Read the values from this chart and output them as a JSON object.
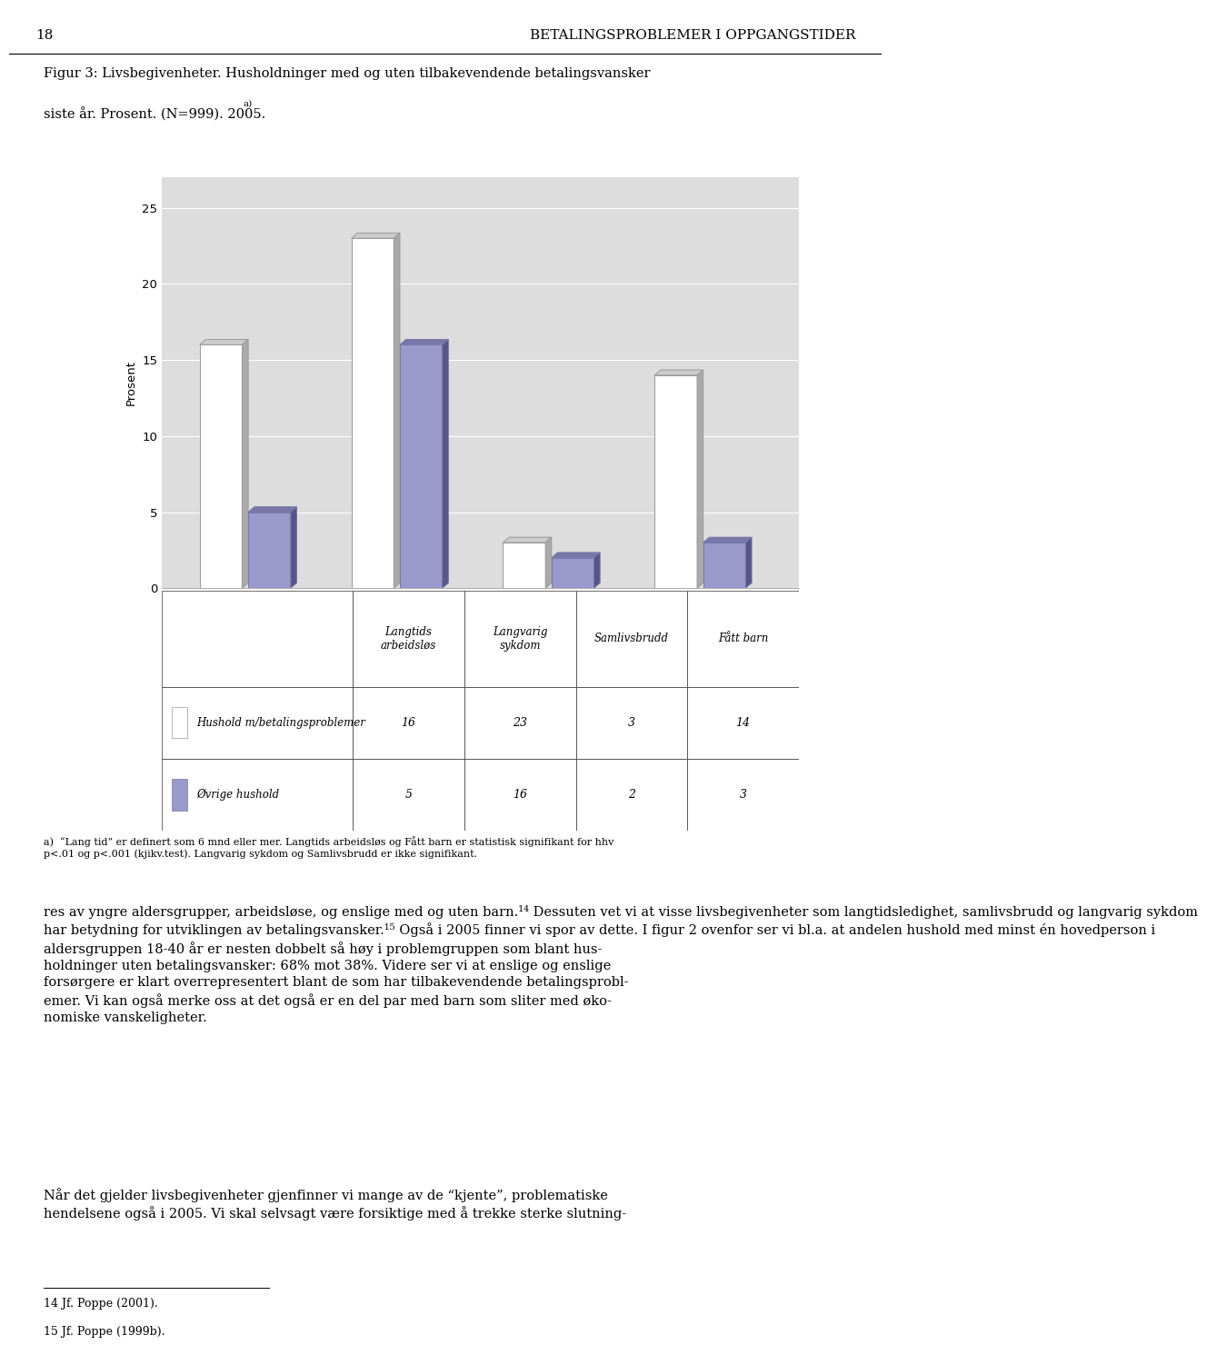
{
  "title_page_num": "18",
  "title_header": "BETALINGSPROBLEMER I OPPGANGSTIDER",
  "caption_line1": "Figur 3: Livsbegivenheter. Husholdninger med og uten tilbakevendende betalingsvansker",
  "caption_line2": "siste år. Prosent. (N=999). 2005.",
  "caption_super": "a)",
  "categories": [
    "Langtids\narbeidsløs",
    "Langvarig\nsykdom",
    "Samlivsbrudd",
    "Fått barn"
  ],
  "cat_labels": [
    "Langtids\narbeidsløs",
    "Langvarig\nsykdom",
    "Samlivsbrudd",
    "Fått barn"
  ],
  "series1_label": "Hushold m/betalingsproblemer",
  "series2_label": "Øvrige hushold",
  "series1_values": [
    16,
    23,
    3,
    14
  ],
  "series2_values": [
    5,
    16,
    2,
    3
  ],
  "series1_color_face": "#FFFFFF",
  "series1_color_edge": "#999999",
  "series1_top_color": "#CCCCCC",
  "series1_side_color": "#AAAAAA",
  "series2_color_face": "#9999CC",
  "series2_color_edge": "#7777AA",
  "series2_top_color": "#7777AA",
  "series2_side_color": "#555588",
  "ylabel": "Prosent",
  "ylim": [
    0,
    25
  ],
  "yticks": [
    0,
    5,
    10,
    15,
    20,
    25
  ],
  "chart_bg": "#DDDDDD",
  "footnote_a_line1": "a)  “Lang tid” er definert som 6 mnd eller mer. Langtids arbeidsløs og Fått barn er statistisk signifikant for hhv",
  "footnote_a_line2": "p<.01 og p<.001 (kjikv.test). Langvarig sykdom og Samlivsbrudd er ikke signifikant.",
  "body_para1_line1": "res av yngre aldersgrupper, arbeidsløse, og enslige med og uten barn.",
  "body_para1_ref1": "14",
  "body_para1_line2": " Dessuten vet vi at visse livsbegivenheter som langtidsledighet, samlivsbrudd og langvarig sykdom",
  "body_para1_line3": "har betydning for utviklingen av betalingsvansker.",
  "body_para1_ref2": "15",
  "body_para1_line4": " Også i 2005 finner vi spor av dette. I figur 2 ovenfor ser vi bl.a. at andelen hushold med minst én hovedperson i",
  "body_para1_line5": "aldersgruppen 18-40 år er nesten dobbelt så høy i problemgruppen som blant hus-",
  "body_para1_line6": "holdninger uten betalingsvansker: 68% mot 38%. Videre ser vi at enslige og enslige",
  "body_para1_line7": "forsørgere er klart overrepresentert blant de som har tilbakevendende betalingsprobl-",
  "body_para1_line8": "emer. Vi kan også merke oss at det også er en del par med barn som sliter med øko-",
  "body_para1_line9": "nomiske vanskeligheter.",
  "body_para2_line1": "Når det gjelder livsbegivenheter gjenfinner vi mange av de “kjente”, problematiske",
  "body_para2_line2": "hendelsene også i 2005. Vi skal selvsagt være forsiktige med å trekke sterke slutning-",
  "footnote14": "14 Jf. Poppe (2001).",
  "footnote15": "15 Jf. Poppe (1999b)."
}
